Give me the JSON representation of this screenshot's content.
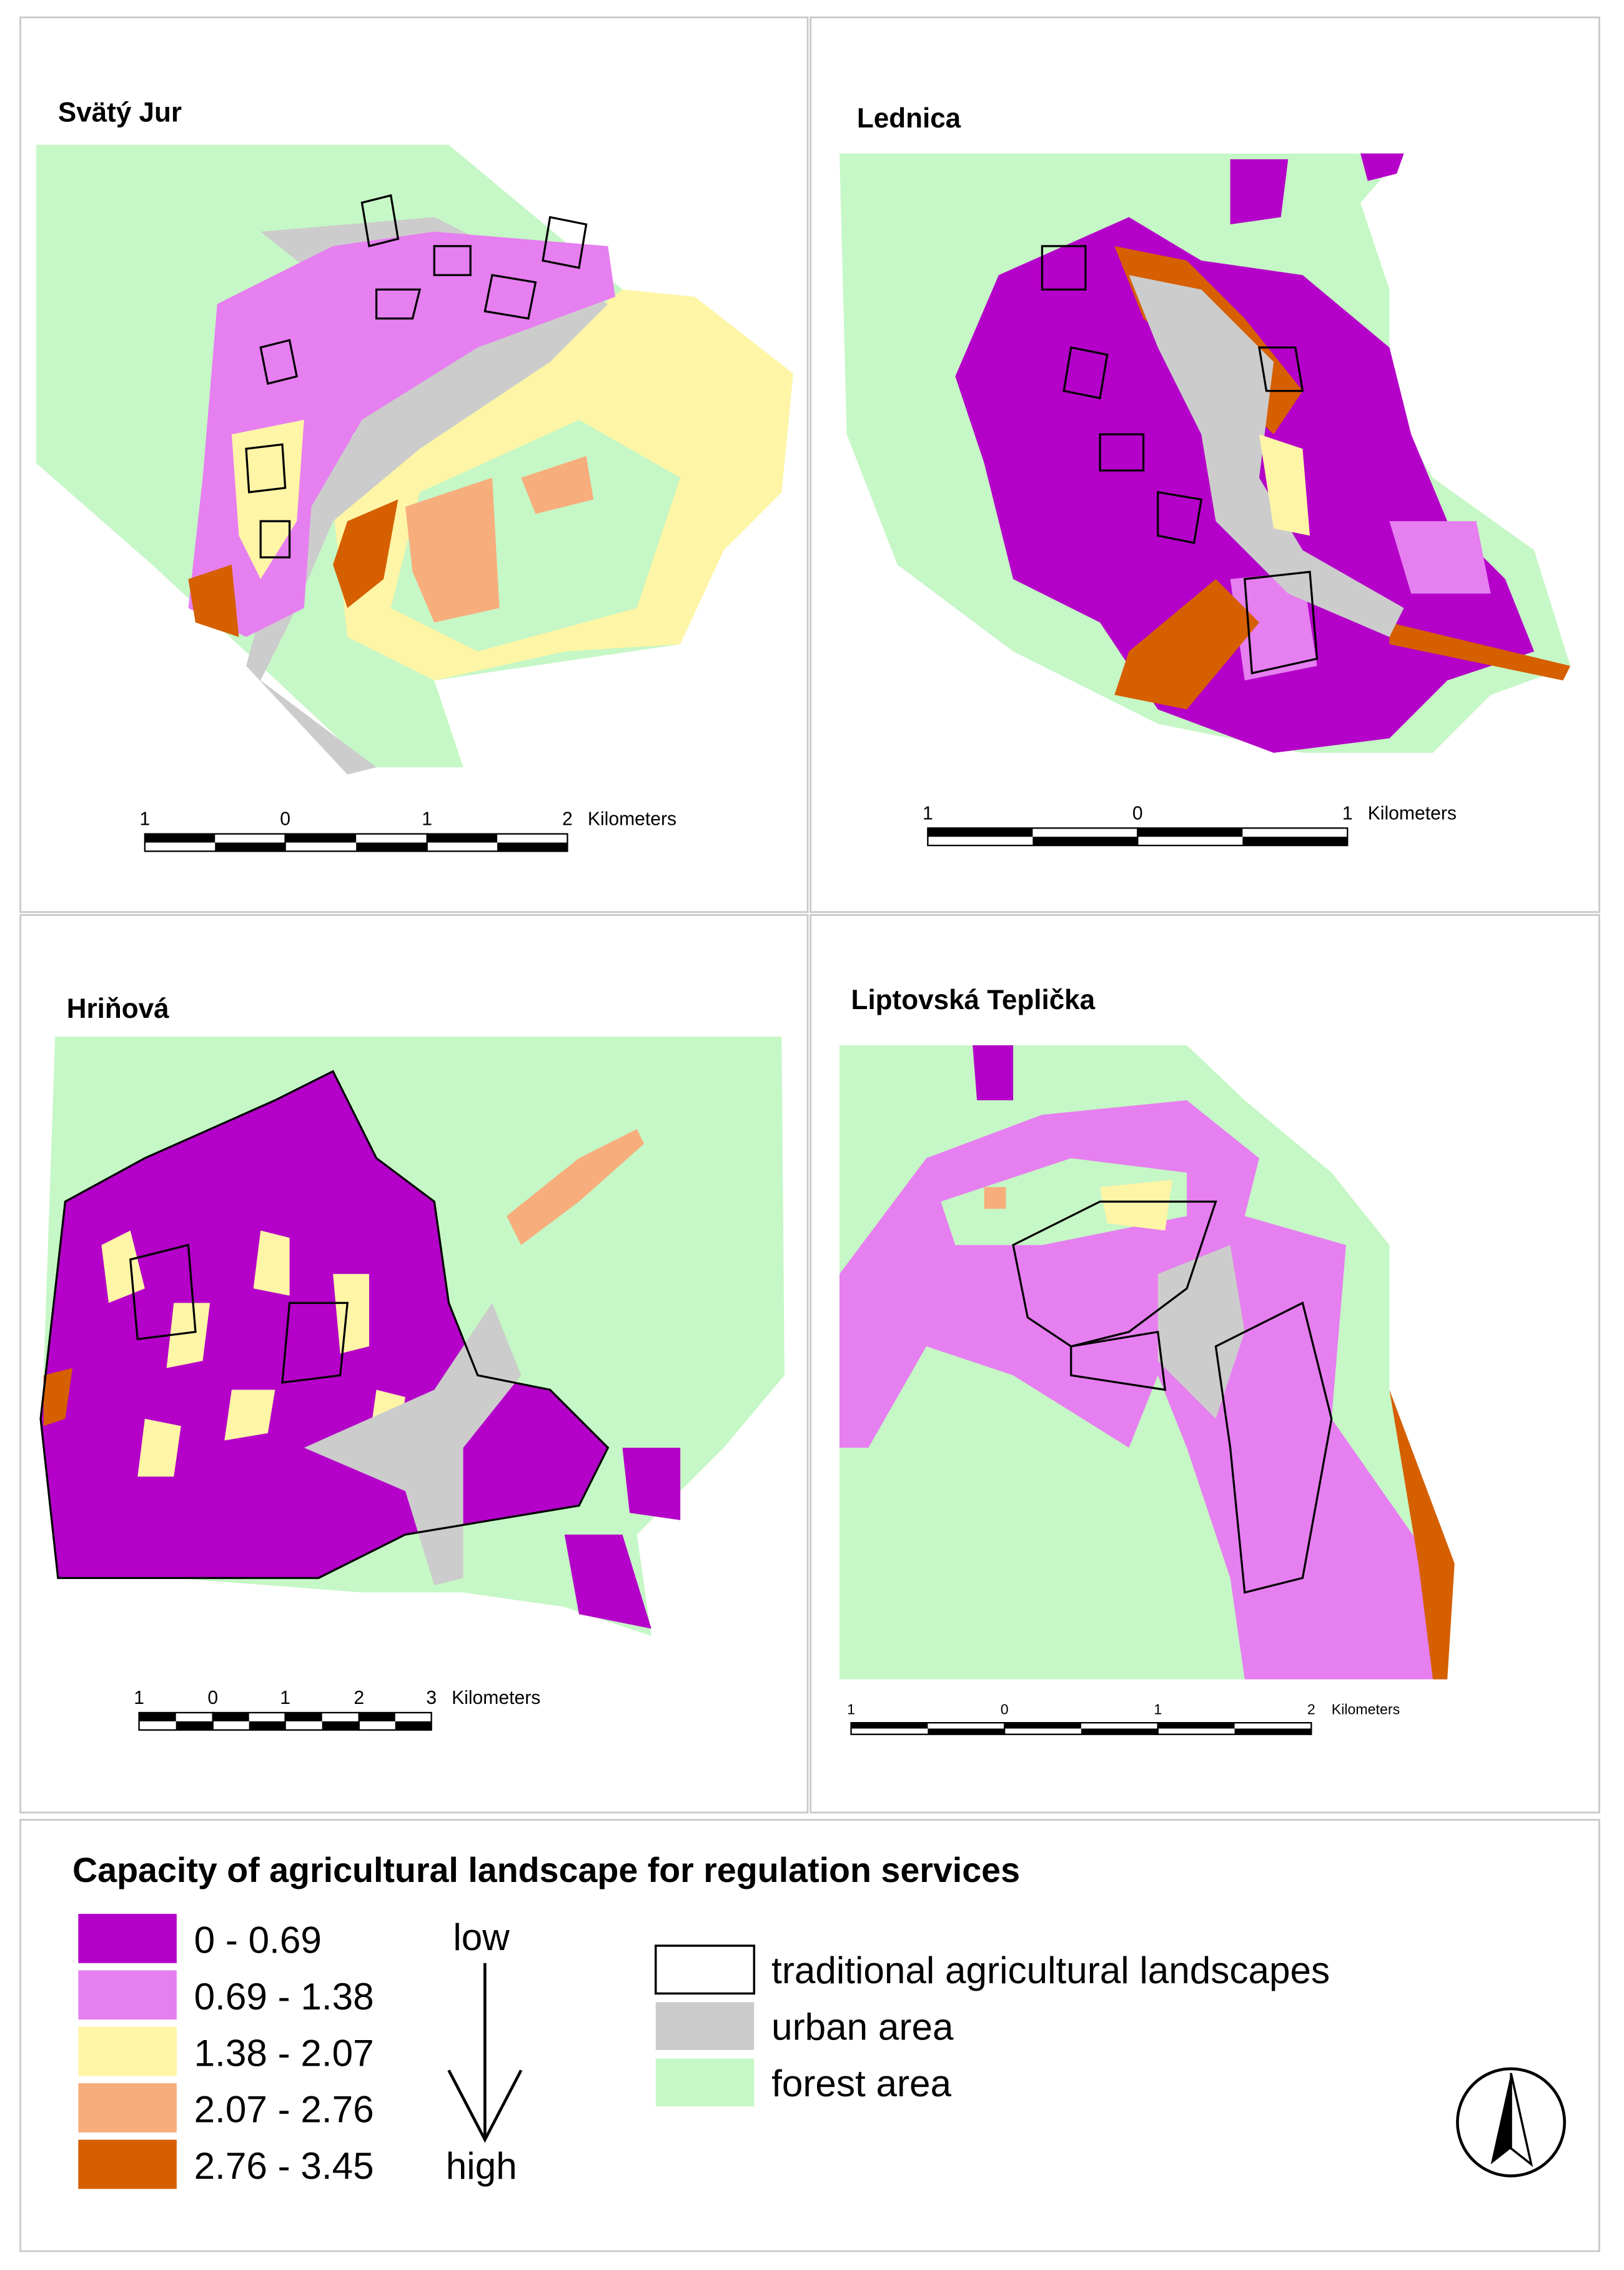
{
  "panels": [
    {
      "title": "Svätý Jur",
      "scale_labels": [
        "1",
        "0",
        "1",
        "2"
      ],
      "unit": "Kilometers"
    },
    {
      "title": "Lednica",
      "scale_labels": [
        "1",
        "0",
        "1"
      ],
      "unit": "Kilometers"
    },
    {
      "title": "Hriňová",
      "scale_labels": [
        "1",
        "0",
        "1",
        "2",
        "3"
      ],
      "unit": "Kilometers"
    },
    {
      "title": "Liptovská Teplička",
      "scale_labels": [
        "1",
        "0",
        "1",
        "2"
      ],
      "unit": "Kilometers"
    }
  ],
  "legend": {
    "title": "Capacity of agricultural landscape for regulation services",
    "classes": [
      {
        "label": "0 - 0.69",
        "color": "#b400c8"
      },
      {
        "label": "0.69 - 1.38",
        "color": "#e67ff0"
      },
      {
        "label": "1.38 - 2.07",
        "color": "#fff5a6"
      },
      {
        "label": "2.07 - 2.76",
        "color": "#f8ad7c"
      },
      {
        "label": "2.76 - 3.45",
        "color": "#d65f00"
      }
    ],
    "low": "low",
    "high": "high",
    "overlays": [
      {
        "label": "traditional agricultural landscapes",
        "color": "#ffffff"
      },
      {
        "label": "urban area",
        "color": "#cccccc"
      },
      {
        "label": "forest area",
        "color": "#c6f7c6"
      }
    ]
  }
}
